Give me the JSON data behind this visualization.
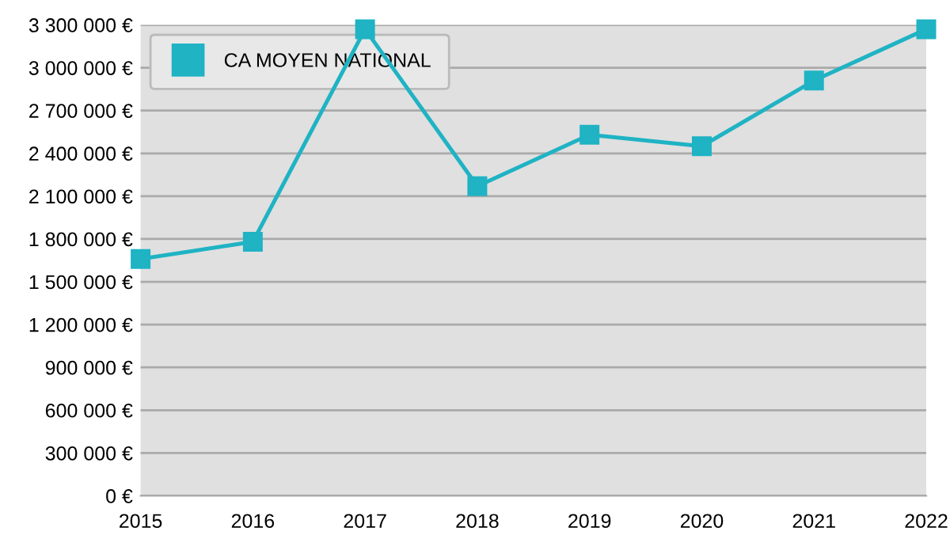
{
  "chart_data": {
    "type": "line",
    "categories": [
      "2015",
      "2016",
      "2017",
      "2018",
      "2019",
      "2020",
      "2021",
      "2022"
    ],
    "series": [
      {
        "name": "CA MOYEN NATIONAL",
        "color": "#1fb3c4",
        "values": [
          1660000,
          1780000,
          3270000,
          2170000,
          2530000,
          2450000,
          2910000,
          3270000
        ]
      }
    ],
    "ylim": [
      0,
      3300000
    ],
    "yticks": [
      {
        "value": 0,
        "label": "0 €"
      },
      {
        "value": 300000,
        "label": "300 000 €"
      },
      {
        "value": 600000,
        "label": "600 000 €"
      },
      {
        "value": 900000,
        "label": "900 000 €"
      },
      {
        "value": 1200000,
        "label": "1 200 000 €"
      },
      {
        "value": 1500000,
        "label": "1 500 000 €"
      },
      {
        "value": 1800000,
        "label": "1 800 000 €"
      },
      {
        "value": 2100000,
        "label": "2 100 000 €"
      },
      {
        "value": 2400000,
        "label": "2 400 000 €"
      },
      {
        "value": 2700000,
        "label": "2 700 000 €"
      },
      {
        "value": 3000000,
        "label": "3 000 000 €"
      },
      {
        "value": 3300000,
        "label": "3 300 000 €"
      }
    ],
    "grid": "y",
    "legend": "top left",
    "marker": "square",
    "line_style": "solid"
  }
}
